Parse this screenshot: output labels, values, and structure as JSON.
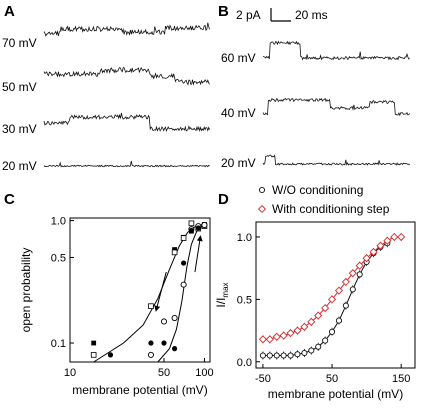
{
  "panels": {
    "A": {
      "letter": "A",
      "traces": [
        {
          "label": "70 mV"
        },
        {
          "label": "50 mV"
        },
        {
          "label": "30 mV"
        },
        {
          "label": "20 mV"
        }
      ]
    },
    "B": {
      "letter": "B",
      "scalebar": {
        "current": "2 pA",
        "time": "20 ms"
      },
      "traces": [
        {
          "label": "60 mV"
        },
        {
          "label": "40 mV"
        },
        {
          "label": "20 mV"
        }
      ]
    },
    "C": {
      "letter": "C"
    },
    "D": {
      "letter": "D"
    }
  },
  "chart_data": [
    {
      "panel": "C",
      "type": "scatter",
      "xlabel": "membrane potential (mV)",
      "ylabel": "open probability",
      "xscale": "log",
      "yscale": "log",
      "xlim": [
        10,
        110
      ],
      "ylim": [
        0.07,
        1.05
      ],
      "xticks": [
        10,
        50,
        100
      ],
      "xtick_labels": [
        "10",
        "50",
        "100"
      ],
      "yticks": [
        0.1,
        0.5,
        1.0
      ],
      "ytick_labels": [
        "0.1",
        "0.5",
        "1.0"
      ],
      "series": [
        {
          "marker": "filled-square",
          "x": [
            15,
            40,
            60,
            70,
            80,
            90,
            100
          ],
          "y": [
            0.1,
            0.2,
            0.58,
            0.73,
            0.82,
            0.88,
            0.93
          ]
        },
        {
          "marker": "open-square",
          "x": [
            15,
            40,
            60,
            70,
            80,
            90,
            100
          ],
          "y": [
            0.08,
            0.2,
            0.55,
            0.72,
            0.95,
            0.86,
            0.9
          ]
        },
        {
          "marker": "open-circle",
          "x": [
            40,
            50,
            60,
            70,
            80,
            90,
            100
          ],
          "y": [
            0.08,
            0.15,
            0.16,
            0.3,
            0.85,
            0.9,
            0.92
          ]
        },
        {
          "marker": "filled-circle",
          "x": [
            20,
            40,
            50,
            60,
            70,
            80,
            90
          ],
          "y": [
            0.08,
            0.1,
            0.1,
            0.09,
            0.45,
            0.83,
            0.87
          ]
        }
      ],
      "fits": [
        {
          "x": [
            15,
            25,
            35,
            45,
            55,
            65,
            75,
            85,
            100
          ],
          "y": [
            0.07,
            0.1,
            0.14,
            0.23,
            0.4,
            0.62,
            0.8,
            0.89,
            0.94
          ]
        },
        {
          "x": [
            45,
            55,
            62,
            68,
            74,
            80,
            88,
            100
          ],
          "y": [
            0.07,
            0.09,
            0.13,
            0.22,
            0.42,
            0.64,
            0.83,
            0.93
          ]
        }
      ],
      "arrows": [
        {
          "from": [
            52,
            0.38
          ],
          "to": [
            44,
            0.19
          ]
        },
        {
          "from": [
            85,
            0.38
          ],
          "to": [
            93,
            0.72
          ]
        }
      ]
    },
    {
      "panel": "D",
      "type": "scatter",
      "xlabel": "membrane potential (mV)",
      "ylabel": "I/I",
      "ylabel_sub": "max",
      "xlim": [
        -60,
        170
      ],
      "ylim": [
        -0.05,
        1.12
      ],
      "xticks": [
        -50,
        50,
        150
      ],
      "xtick_labels": [
        "-50",
        "50",
        "150"
      ],
      "yticks": [
        0.0,
        0.5,
        1.0
      ],
      "ytick_labels": [
        "0.0",
        "0.5",
        "1.0"
      ],
      "legend_position": "top-right",
      "series": [
        {
          "name": "W/O conditioning",
          "color": "#111111",
          "marker": "open-circle",
          "x": [
            -50,
            -40,
            -30,
            -20,
            -10,
            0,
            10,
            20,
            30,
            40,
            50,
            60,
            70,
            80,
            90,
            100,
            110,
            120,
            130
          ],
          "y": [
            0.05,
            0.05,
            0.05,
            0.05,
            0.05,
            0.06,
            0.07,
            0.09,
            0.12,
            0.17,
            0.24,
            0.33,
            0.45,
            0.58,
            0.7,
            0.8,
            0.87,
            0.92,
            0.95
          ]
        },
        {
          "name": "With conditioning step",
          "color": "#d62728",
          "marker": "open-diamond",
          "x": [
            -50,
            -40,
            -30,
            -20,
            -10,
            0,
            10,
            20,
            30,
            40,
            50,
            60,
            70,
            80,
            90,
            100,
            110,
            120,
            130,
            140,
            150
          ],
          "y": [
            0.18,
            0.18,
            0.2,
            0.21,
            0.23,
            0.25,
            0.28,
            0.32,
            0.37,
            0.43,
            0.5,
            0.57,
            0.64,
            0.71,
            0.77,
            0.83,
            0.88,
            0.93,
            0.97,
            1.0,
            1.0
          ]
        }
      ]
    }
  ]
}
